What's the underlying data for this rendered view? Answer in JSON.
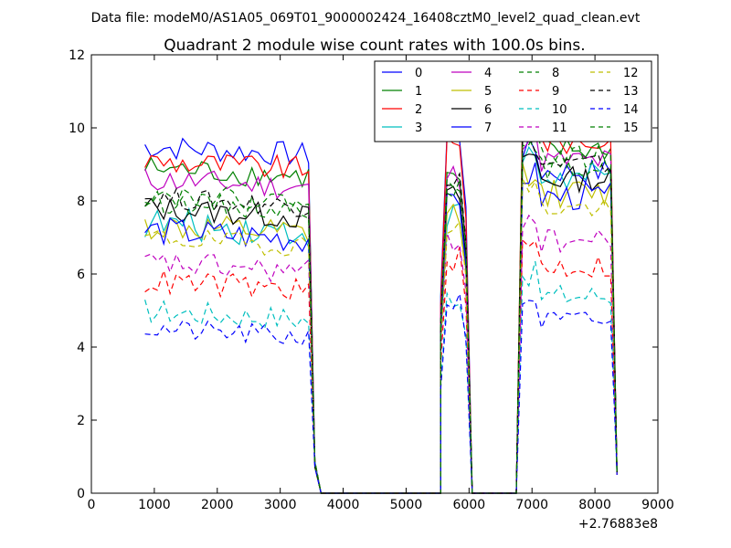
{
  "chart_data": {
    "type": "line",
    "suptitle": "Data file: modeM0/AS1A05_069T01_9000002424_16408cztM0_level2_quad_clean.evt",
    "title": "Quadrant 2 module wise count rates with 100.0s bins.",
    "xlabel": "",
    "ylabel": "",
    "x_offset_label": "+2.76883e8",
    "xlim": [
      0,
      9000
    ],
    "ylim": [
      0,
      12
    ],
    "xticks": [
      "0",
      "1000",
      "2000",
      "3000",
      "4000",
      "5000",
      "6000",
      "7000",
      "8000",
      "9000"
    ],
    "yticks": [
      "0",
      "2",
      "4",
      "6",
      "8",
      "10",
      "12"
    ],
    "legend_position": "top-right",
    "series": [
      {
        "name": "0",
        "color": "#0000ff",
        "dash": "solid",
        "seg1": 9.5,
        "seg2": 9.8,
        "seg3": 8.8,
        "amp": 0.35
      },
      {
        "name": "1",
        "color": "#008000",
        "dash": "solid",
        "seg1": 8.9,
        "seg2": 8.6,
        "seg3": 9.4,
        "amp": 0.35
      },
      {
        "name": "2",
        "color": "#ff0000",
        "dash": "solid",
        "seg1": 9.1,
        "seg2": 9.4,
        "seg3": 9.6,
        "amp": 0.35
      },
      {
        "name": "3",
        "color": "#00bfbf",
        "dash": "solid",
        "seg1": 7.4,
        "seg2": 7.6,
        "seg3": 8.6,
        "amp": 0.45
      },
      {
        "name": "4",
        "color": "#bf00bf",
        "dash": "solid",
        "seg1": 8.6,
        "seg2": 8.7,
        "seg3": 9.1,
        "amp": 0.35
      },
      {
        "name": "5",
        "color": "#bfbf00",
        "dash": "solid",
        "seg1": 7.3,
        "seg2": 7.6,
        "seg3": 8.2,
        "amp": 0.4
      },
      {
        "name": "6",
        "color": "#000000",
        "dash": "solid",
        "seg1": 7.8,
        "seg2": 8.1,
        "seg3": 8.6,
        "amp": 0.35
      },
      {
        "name": "7",
        "color": "#0000ff",
        "dash": "solid",
        "seg1": 7.2,
        "seg2": 7.8,
        "seg3": 8.1,
        "amp": 0.4
      },
      {
        "name": "8",
        "color": "#008000",
        "dash": "dashed",
        "seg1": 8.0,
        "seg2": 8.4,
        "seg3": 8.9,
        "amp": 0.3
      },
      {
        "name": "9",
        "color": "#ff0000",
        "dash": "dashed",
        "seg1": 5.8,
        "seg2": 6.4,
        "seg3": 6.2,
        "amp": 0.35
      },
      {
        "name": "10",
        "color": "#00bfbf",
        "dash": "dashed",
        "seg1": 5.0,
        "seg2": 5.4,
        "seg3": 5.4,
        "amp": 0.35
      },
      {
        "name": "11",
        "color": "#bf00bf",
        "dash": "dashed",
        "seg1": 6.3,
        "seg2": 6.9,
        "seg3": 6.9,
        "amp": 0.35
      },
      {
        "name": "12",
        "color": "#bfbf00",
        "dash": "dashed",
        "seg1": 7.0,
        "seg2": 7.4,
        "seg3": 7.8,
        "amp": 0.3
      },
      {
        "name": "13",
        "color": "#000000",
        "dash": "dashed",
        "seg1": 8.1,
        "seg2": 8.6,
        "seg3": 9.0,
        "amp": 0.3
      },
      {
        "name": "14",
        "color": "#0000ff",
        "dash": "dashed",
        "seg1": 4.5,
        "seg2": 5.2,
        "seg3": 4.7,
        "amp": 0.3
      },
      {
        "name": "15",
        "color": "#008000",
        "dash": "dashed",
        "seg1": 8.2,
        "seg2": 8.5,
        "seg3": 9.2,
        "amp": 0.3
      }
    ]
  }
}
